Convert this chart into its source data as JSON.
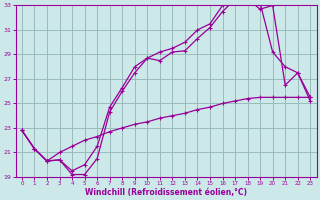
{
  "title": "",
  "xlabel": "Windchill (Refroidissement éolien,°C)",
  "ylabel": "",
  "xlim": [
    -0.5,
    23.5
  ],
  "ylim": [
    19,
    33
  ],
  "yticks": [
    19,
    21,
    23,
    25,
    27,
    29,
    31,
    33
  ],
  "xticks": [
    0,
    1,
    2,
    3,
    4,
    5,
    6,
    7,
    8,
    9,
    10,
    11,
    12,
    13,
    14,
    15,
    16,
    17,
    18,
    19,
    20,
    21,
    22,
    23
  ],
  "line_color": "#990099",
  "bg_color": "#cce8e8",
  "grid_color": "#99bbbb",
  "line1_x": [
    0,
    1,
    2,
    3,
    4,
    5,
    6,
    7,
    8,
    9,
    10,
    11,
    12,
    13,
    14,
    15,
    16,
    17,
    18,
    19,
    20,
    21,
    22,
    23
  ],
  "line1_y": [
    22.8,
    21.3,
    20.3,
    20.4,
    19.2,
    19.2,
    20.5,
    24.3,
    26.0,
    27.5,
    28.7,
    28.5,
    29.2,
    29.3,
    30.3,
    31.2,
    32.5,
    33.5,
    33.2,
    33.2,
    29.2,
    28.0,
    27.5,
    25.5
  ],
  "line2_x": [
    0,
    1,
    2,
    3,
    4,
    5,
    6,
    7,
    8,
    9,
    10,
    11,
    12,
    13,
    14,
    15,
    16,
    17,
    18,
    19,
    20,
    21,
    22,
    23
  ],
  "line2_y": [
    22.8,
    21.3,
    20.3,
    20.4,
    19.5,
    20.0,
    21.5,
    24.7,
    26.3,
    28.0,
    28.7,
    29.2,
    29.5,
    30.0,
    31.0,
    31.5,
    33.0,
    33.5,
    33.5,
    32.7,
    33.0,
    26.5,
    27.5,
    25.2
  ],
  "line3_x": [
    0,
    1,
    2,
    3,
    4,
    5,
    6,
    7,
    8,
    9,
    10,
    11,
    12,
    13,
    14,
    15,
    16,
    17,
    18,
    19,
    20,
    21,
    22,
    23
  ],
  "line3_y": [
    22.8,
    21.3,
    20.3,
    21.0,
    21.5,
    22.0,
    22.3,
    22.7,
    23.0,
    23.3,
    23.5,
    23.8,
    24.0,
    24.2,
    24.5,
    24.7,
    25.0,
    25.2,
    25.4,
    25.5,
    25.5,
    25.5,
    25.5,
    25.5
  ]
}
